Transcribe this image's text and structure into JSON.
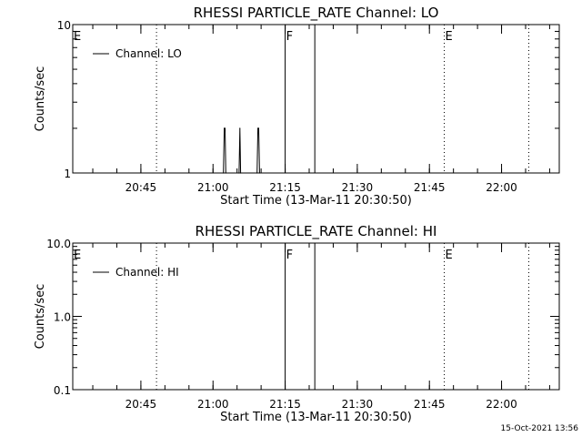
{
  "footer": {
    "timestamp": "15-Oct-2021 13:56"
  },
  "chart_data": [
    {
      "type": "line",
      "title": "RHESSI PARTICLE_RATE Channel: LO",
      "xlabel": "Start Time (13-Mar-11 20:30:50)",
      "ylabel": "Counts/sec",
      "yscale": "log",
      "ylim": [
        1,
        10
      ],
      "xlim": [
        "20:30:50",
        "22:12:00"
      ],
      "yticks": [
        {
          "value": 1,
          "label": "1"
        },
        {
          "value": 10,
          "label": "10"
        }
      ],
      "xticks": [
        "20:45",
        "21:00",
        "21:15",
        "21:30",
        "21:45",
        "22:00"
      ],
      "legend": {
        "position": "top-left",
        "label": "Channel: LO"
      },
      "series": [
        {
          "name": "Channel: LO",
          "points": [
            [
              "21:02:10",
              1
            ],
            [
              "21:02:20",
              2
            ],
            [
              "21:02:30",
              2
            ],
            [
              "21:02:40",
              1
            ],
            [
              "21:05:25",
              1
            ],
            [
              "21:05:35",
              2
            ],
            [
              "21:05:45",
              1
            ],
            [
              "21:09:10",
              1
            ],
            [
              "21:09:20",
              2
            ],
            [
              "21:09:30",
              2
            ],
            [
              "21:09:40",
              1
            ]
          ]
        }
      ],
      "markers": [
        {
          "time": "20:30:50",
          "label": "E",
          "style": "solid"
        },
        {
          "time": "20:48:15",
          "label": "",
          "style": "dotted"
        },
        {
          "time": "21:15:00",
          "label": "F",
          "style": "solid"
        },
        {
          "time": "21:21:10",
          "label": "",
          "style": "solid"
        },
        {
          "time": "21:48:05",
          "label": "E",
          "style": "dotted"
        },
        {
          "time": "22:05:40",
          "label": "",
          "style": "dotted"
        }
      ]
    },
    {
      "type": "line",
      "title": "RHESSI PARTICLE_RATE Channel: HI",
      "xlabel": "Start Time (13-Mar-11 20:30:50)",
      "ylabel": "Counts/sec",
      "yscale": "log",
      "ylim": [
        0.1,
        10
      ],
      "xlim": [
        "20:30:50",
        "22:12:00"
      ],
      "yticks": [
        {
          "value": 0.1,
          "label": "0.1"
        },
        {
          "value": 1,
          "label": "1.0"
        },
        {
          "value": 10,
          "label": "10.0"
        }
      ],
      "xticks": [
        "20:45",
        "21:00",
        "21:15",
        "21:30",
        "21:45",
        "22:00"
      ],
      "legend": {
        "position": "top-left",
        "label": "Channel: HI"
      },
      "series": [
        {
          "name": "Channel: HI",
          "points": []
        }
      ],
      "markers": [
        {
          "time": "20:30:50",
          "label": "E",
          "style": "solid"
        },
        {
          "time": "20:48:15",
          "label": "",
          "style": "dotted"
        },
        {
          "time": "21:15:00",
          "label": "F",
          "style": "solid"
        },
        {
          "time": "21:21:10",
          "label": "",
          "style": "solid"
        },
        {
          "time": "21:48:05",
          "label": "E",
          "style": "dotted"
        },
        {
          "time": "22:05:40",
          "label": "",
          "style": "dotted"
        }
      ]
    }
  ]
}
